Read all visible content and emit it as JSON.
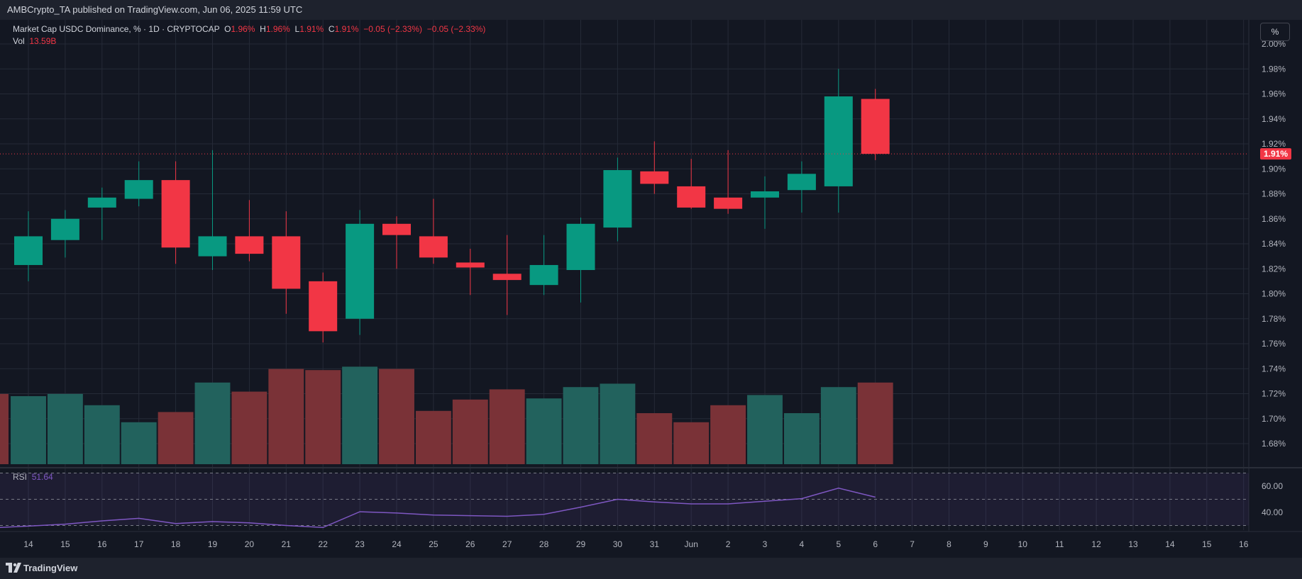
{
  "header": {
    "published_text": "AMBCrypto_TA published on TradingView.com, Jun 06, 2025 11:59 UTC"
  },
  "legend": {
    "symbol": "Market Cap USDC Dominance, % · 1D · CRYPTOCAP",
    "o_label": "O",
    "o_value": "1.96%",
    "h_label": "H",
    "h_value": "1.96%",
    "l_label": "L",
    "l_value": "1.91%",
    "c_label": "C",
    "c_value": "1.91%",
    "change": "−0.05 (−2.33%)",
    "change2": "−0.05 (−2.33%)",
    "vol_label": "Vol",
    "vol_value": "13.59B"
  },
  "rsi_legend": {
    "label": "RSI",
    "value": "51.64"
  },
  "scale_button": "%",
  "footer": {
    "brand": "TradingView"
  },
  "colors": {
    "background": "#131722",
    "up": "#089981",
    "down": "#f23645",
    "volume_up": "#22625d",
    "volume_down": "#7a3237",
    "rsi_line": "#7e57c2",
    "grid": "#252a37"
  },
  "chart_data": {
    "type": "candlestick",
    "price_axis": {
      "ticks": [
        "2.00%",
        "1.98%",
        "1.96%",
        "1.94%",
        "1.92%",
        "1.90%",
        "1.88%",
        "1.86%",
        "1.84%",
        "1.82%",
        "1.80%",
        "1.78%",
        "1.76%",
        "1.74%",
        "1.72%",
        "1.70%",
        "1.68%"
      ],
      "tick_values": [
        2.0,
        1.98,
        1.96,
        1.94,
        1.92,
        1.9,
        1.88,
        1.86,
        1.84,
        1.82,
        1.8,
        1.78,
        1.76,
        1.74,
        1.72,
        1.7,
        1.68
      ],
      "last_price_label": "1.91%",
      "last_price": 1.912
    },
    "x_labels": [
      "14",
      "15",
      "16",
      "17",
      "18",
      "19",
      "20",
      "21",
      "22",
      "23",
      "24",
      "25",
      "26",
      "27",
      "28",
      "29",
      "30",
      "31",
      "Jun",
      "2",
      "3",
      "4",
      "5",
      "6",
      "7",
      "8",
      "9",
      "10",
      "11",
      "12",
      "13",
      "14",
      "15",
      "16"
    ],
    "candles": [
      {
        "date": "14",
        "o": 1.823,
        "h": 1.866,
        "l": 1.81,
        "c": 1.846
      },
      {
        "date": "15",
        "o": 1.843,
        "h": 1.867,
        "l": 1.829,
        "c": 1.86
      },
      {
        "date": "16",
        "o": 1.869,
        "h": 1.885,
        "l": 1.843,
        "c": 1.877
      },
      {
        "date": "17",
        "o": 1.876,
        "h": 1.906,
        "l": 1.87,
        "c": 1.891
      },
      {
        "date": "18",
        "o": 1.891,
        "h": 1.906,
        "l": 1.824,
        "c": 1.837
      },
      {
        "date": "19",
        "o": 1.83,
        "h": 1.915,
        "l": 1.819,
        "c": 1.846
      },
      {
        "date": "20",
        "o": 1.846,
        "h": 1.875,
        "l": 1.826,
        "c": 1.832
      },
      {
        "date": "21",
        "o": 1.846,
        "h": 1.866,
        "l": 1.784,
        "c": 1.804
      },
      {
        "date": "22",
        "o": 1.81,
        "h": 1.817,
        "l": 1.761,
        "c": 1.77
      },
      {
        "date": "23",
        "o": 1.78,
        "h": 1.867,
        "l": 1.767,
        "c": 1.856
      },
      {
        "date": "24",
        "o": 1.856,
        "h": 1.862,
        "l": 1.82,
        "c": 1.847
      },
      {
        "date": "25",
        "o": 1.846,
        "h": 1.876,
        "l": 1.824,
        "c": 1.829
      },
      {
        "date": "26",
        "o": 1.825,
        "h": 1.836,
        "l": 1.799,
        "c": 1.821
      },
      {
        "date": "27",
        "o": 1.816,
        "h": 1.847,
        "l": 1.783,
        "c": 1.811
      },
      {
        "date": "28",
        "o": 1.807,
        "h": 1.847,
        "l": 1.799,
        "c": 1.823
      },
      {
        "date": "29",
        "o": 1.819,
        "h": 1.861,
        "l": 1.793,
        "c": 1.856
      },
      {
        "date": "30",
        "o": 1.853,
        "h": 1.909,
        "l": 1.842,
        "c": 1.899
      },
      {
        "date": "31",
        "o": 1.898,
        "h": 1.922,
        "l": 1.88,
        "c": 1.888
      },
      {
        "date": "Jun 1",
        "o": 1.886,
        "h": 1.908,
        "l": 1.868,
        "c": 1.869
      },
      {
        "date": "2",
        "o": 1.877,
        "h": 1.915,
        "l": 1.864,
        "c": 1.868
      },
      {
        "date": "3",
        "o": 1.877,
        "h": 1.894,
        "l": 1.852,
        "c": 1.882
      },
      {
        "date": "4",
        "o": 1.883,
        "h": 1.906,
        "l": 1.865,
        "c": 1.896
      },
      {
        "date": "5",
        "o": 1.886,
        "h": 1.98,
        "l": 1.865,
        "c": 1.958
      },
      {
        "date": "6",
        "o": 1.956,
        "h": 1.964,
        "l": 1.907,
        "c": 1.912
      }
    ],
    "volume": {
      "series_name": "Vol",
      "last_value": "13.59B",
      "bars_relative": [
        0.6,
        0.62,
        0.52,
        0.37,
        0.46,
        0.72,
        0.64,
        0.84,
        0.83,
        0.86,
        0.84,
        0.47,
        0.57,
        0.66,
        0.58,
        0.68,
        0.71,
        0.45,
        0.37,
        0.52,
        0.61,
        0.45,
        0.68,
        0.72
      ],
      "bars_up": [
        true,
        true,
        true,
        true,
        false,
        true,
        false,
        false,
        false,
        true,
        false,
        false,
        false,
        false,
        true,
        true,
        true,
        false,
        false,
        false,
        true,
        true,
        true,
        false
      ]
    },
    "rsi": {
      "series_name": "RSI",
      "last_value": 51.64,
      "ticks": [
        "60.00",
        "40.00"
      ],
      "tick_values": [
        60,
        40
      ],
      "bands": [
        70,
        50,
        30
      ],
      "values": [
        29.5,
        31.0,
        33.5,
        35.5,
        31.5,
        33.0,
        32.0,
        30.0,
        28.5,
        40.5,
        39.5,
        38.0,
        37.5,
        37.0,
        38.5,
        44.0,
        50.0,
        48.0,
        46.5,
        46.5,
        48.5,
        50.5,
        58.5,
        51.64
      ]
    }
  }
}
